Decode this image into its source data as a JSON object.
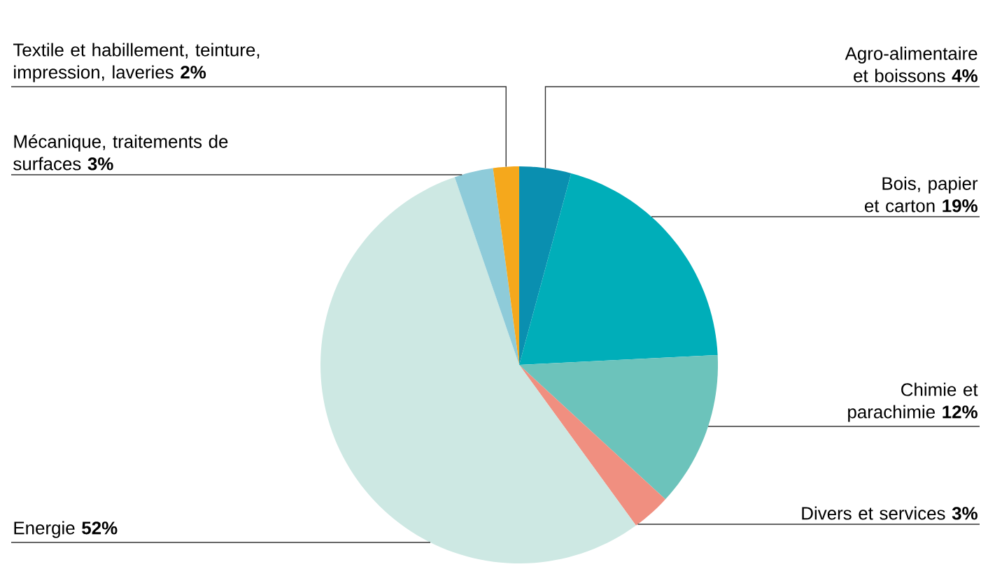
{
  "chart_data": {
    "type": "pie",
    "categories": [
      "Agro-alimentaire et boissons **4%**",
      "Bois, papier et carton **19%**",
      "Chimie et parachimie **12%**",
      "Divers et services **3%**",
      "Energie **52%**",
      "Mécanique, traitements de surfaces **3%**",
      "Textile et habillement, teinture, impression, laveries **2%**"
    ],
    "values": [
      4,
      19,
      12,
      3,
      52,
      3,
      2
    ],
    "colors": [
      "#0a8fb0",
      "#00aeb9",
      "#6cc3bb",
      "#f08f80",
      "#cde8e3",
      "#8ecbd9",
      "#f5a81c"
    ]
  }
}
